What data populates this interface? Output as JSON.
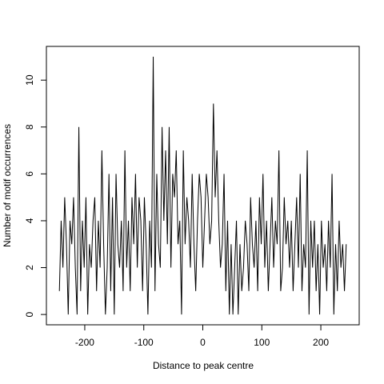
{
  "chart_data": {
    "type": "line",
    "x_label": "Distance to peak centre",
    "y_label": "Number of motif occurrences",
    "x": [
      -243,
      -240,
      -237,
      -234,
      -231,
      -228,
      -225,
      -222,
      -219,
      -216,
      -213,
      -210,
      -207,
      -204,
      -201,
      -198,
      -195,
      -192,
      -189,
      -186,
      -183,
      -180,
      -177,
      -174,
      -171,
      -168,
      -165,
      -162,
      -159,
      -156,
      -153,
      -150,
      -147,
      -144,
      -141,
      -138,
      -135,
      -132,
      -129,
      -126,
      -123,
      -120,
      -117,
      -114,
      -111,
      -108,
      -105,
      -102,
      -99,
      -96,
      -93,
      -90,
      -87,
      -84,
      -81,
      -78,
      -75,
      -72,
      -69,
      -66,
      -63,
      -60,
      -57,
      -54,
      -51,
      -48,
      -45,
      -42,
      -39,
      -36,
      -33,
      -30,
      -27,
      -24,
      -21,
      -18,
      -15,
      -12,
      -9,
      -6,
      -3,
      0,
      3,
      6,
      9,
      12,
      15,
      18,
      21,
      24,
      27,
      30,
      33,
      36,
      39,
      42,
      45,
      48,
      51,
      54,
      57,
      60,
      63,
      66,
      69,
      72,
      75,
      78,
      81,
      84,
      87,
      90,
      93,
      96,
      99,
      102,
      105,
      108,
      111,
      114,
      117,
      120,
      123,
      126,
      129,
      132,
      135,
      138,
      141,
      144,
      147,
      150,
      153,
      156,
      159,
      162,
      165,
      168,
      171,
      174,
      177,
      180,
      183,
      186,
      189,
      192,
      195,
      198,
      201,
      204,
      207,
      210,
      213,
      216,
      219,
      222,
      225,
      228,
      231,
      234,
      237,
      240,
      243
    ],
    "values": [
      1,
      4,
      2,
      5,
      3,
      0,
      4,
      3,
      5,
      2,
      0,
      8,
      1,
      4,
      2,
      5,
      0,
      3,
      2,
      4,
      5,
      1,
      4,
      2,
      7,
      3,
      0,
      2,
      6,
      1,
      5,
      0,
      6,
      3,
      2,
      4,
      1,
      7,
      2,
      4,
      1,
      5,
      3,
      6,
      2,
      5,
      4,
      1,
      5,
      3,
      0,
      4,
      2,
      11,
      1,
      6,
      3,
      2,
      8,
      4,
      7,
      3,
      8,
      2,
      6,
      5,
      7,
      3,
      4,
      0,
      7,
      3,
      5,
      4,
      2,
      6,
      3,
      1,
      4,
      6,
      5,
      2,
      4,
      6,
      5,
      3,
      4,
      9,
      5,
      7,
      4,
      2,
      3,
      6,
      1,
      4,
      0,
      3,
      0,
      2,
      4,
      0,
      3,
      1,
      2,
      4,
      3,
      1,
      5,
      3,
      2,
      4,
      1,
      5,
      3,
      6,
      2,
      4,
      1,
      3,
      5,
      2,
      4,
      3,
      7,
      1,
      2,
      5,
      3,
      4,
      2,
      4,
      1,
      3,
      5,
      2,
      6,
      1,
      3,
      2,
      7,
      0,
      4,
      2,
      4,
      1,
      3,
      0,
      4,
      2,
      3,
      1,
      4,
      2,
      6,
      0,
      3,
      1,
      4,
      2,
      3,
      1,
      3
    ],
    "color": "#000000",
    "xlim": [
      -265,
      265
    ],
    "xticks": [
      -200,
      -100,
      0,
      100,
      200
    ],
    "ylim": [
      -0.44,
      11.44
    ],
    "yticks": [
      0,
      2,
      4,
      6,
      8,
      10
    ]
  }
}
